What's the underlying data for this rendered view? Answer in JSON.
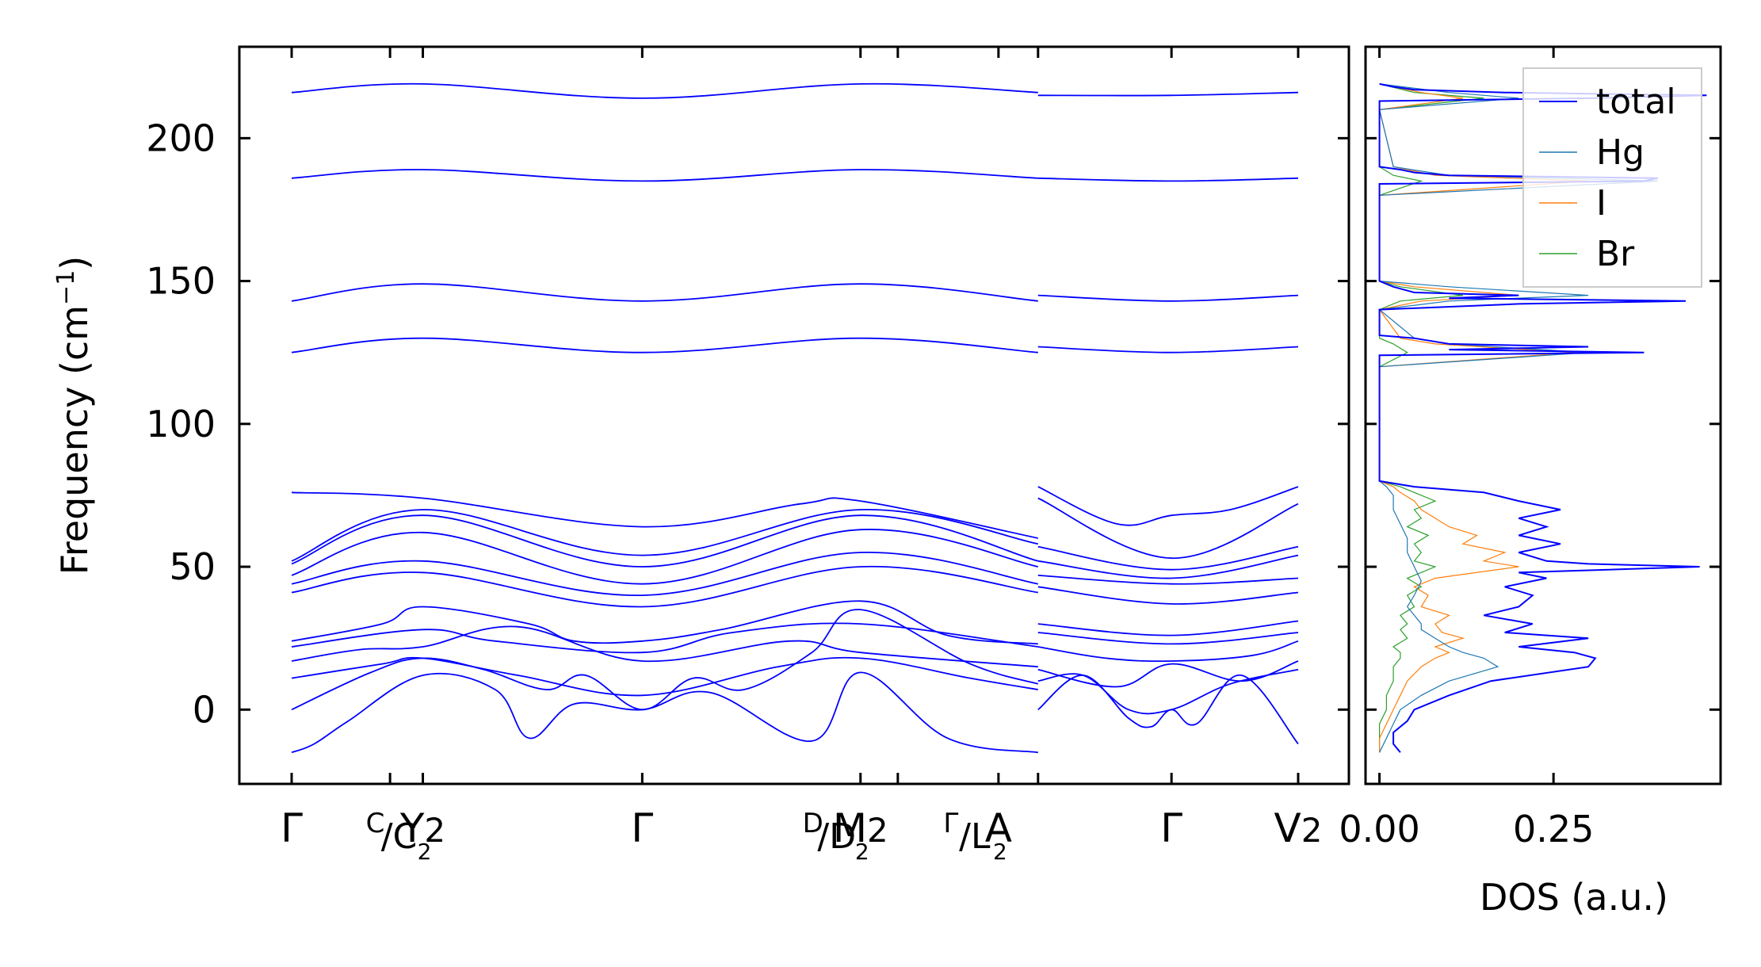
{
  "chart_data": [
    {
      "type": "line",
      "panel": "band-structure",
      "ylabel": "Frequency (cm",
      "ylabel_sup": "−1",
      "ylabel_end": ")",
      "ylim": [
        -26,
        232
      ],
      "yticks": [
        0,
        50,
        100,
        150,
        200
      ],
      "xticks": [
        {
          "main": "Γ",
          "x": 0
        },
        {
          "main": "Y",
          "sub": "2",
          "x": 1.16,
          "pre": "C",
          "pre_slash": "C",
          "pre_sub": "2"
        },
        {
          "main": "Γ",
          "x": 3.1
        },
        {
          "main": "M",
          "sub": "2",
          "x": 5.03,
          "pre": "D",
          "pre_slash": "D",
          "pre_sub": "2"
        },
        {
          "main": "A",
          "x": 6.25,
          "pre": "Γ",
          "pre_slash": "L",
          "pre_sub": "2"
        },
        {
          "main": "Γ",
          "x": 7.78
        },
        {
          "main": "V",
          "sub": "2",
          "x": 8.9
        }
      ],
      "minor_ticks_x": [
        0.87,
        5.36,
        6.6
      ],
      "segment_break_x": 6.6,
      "series_color": "#0000ff",
      "series": [
        {
          "x": [
            0,
            1.16,
            3.1,
            5.03,
            6.6
          ],
          "y": [
            216,
            219,
            214,
            219,
            216
          ]
        },
        {
          "x": [
            6.6,
            7.78,
            8.9
          ],
          "y": [
            215,
            215,
            216
          ]
        },
        {
          "x": [
            0,
            1.16,
            3.1,
            5.03,
            6.6
          ],
          "y": [
            186,
            189,
            185,
            189,
            186
          ]
        },
        {
          "x": [
            6.6,
            7.78,
            8.9
          ],
          "y": [
            186,
            185,
            186
          ]
        },
        {
          "x": [
            0,
            1.16,
            3.1,
            5.03,
            6.6
          ],
          "y": [
            143,
            149,
            143,
            149,
            143
          ]
        },
        {
          "x": [
            6.6,
            7.78,
            8.9
          ],
          "y": [
            145,
            143,
            145
          ]
        },
        {
          "x": [
            0,
            1.16,
            3.1,
            5.03,
            6.6
          ],
          "y": [
            125,
            130,
            125,
            130,
            125
          ]
        },
        {
          "x": [
            6.6,
            7.78,
            8.9
          ],
          "y": [
            127,
            125,
            127
          ]
        },
        {
          "x": [
            0,
            1.16,
            3.1,
            4.5,
            5.03,
            6.6
          ],
          "y": [
            76,
            74,
            64,
            72,
            73,
            60
          ]
        },
        {
          "x": [
            6.6,
            7.3,
            7.78,
            8.3,
            8.9
          ],
          "y": [
            78,
            65,
            68,
            70,
            78
          ]
        },
        {
          "x": [
            0,
            1.16,
            3.1,
            5.03,
            6.6
          ],
          "y": [
            52,
            70,
            54,
            70,
            58
          ]
        },
        {
          "x": [
            6.6,
            7.78,
            8.9
          ],
          "y": [
            74,
            53,
            72
          ]
        },
        {
          "x": [
            0,
            1.16,
            3.1,
            5.03,
            6.6
          ],
          "y": [
            51,
            68,
            50,
            68,
            52
          ]
        },
        {
          "x": [
            6.6,
            7.78,
            8.9
          ],
          "y": [
            57,
            49,
            57
          ]
        },
        {
          "x": [
            0,
            1.16,
            3.1,
            5.03,
            6.6
          ],
          "y": [
            47,
            62,
            44,
            63,
            50
          ]
        },
        {
          "x": [
            6.6,
            7.78,
            8.9
          ],
          "y": [
            52,
            46,
            54
          ]
        },
        {
          "x": [
            0,
            1.16,
            3.1,
            5.03,
            6.6
          ],
          "y": [
            44,
            52,
            40,
            55,
            44
          ]
        },
        {
          "x": [
            6.6,
            7.78,
            8.9
          ],
          "y": [
            47,
            44,
            46
          ]
        },
        {
          "x": [
            0,
            1.16,
            3.1,
            5.03,
            6.6
          ],
          "y": [
            41,
            48,
            36,
            50,
            41
          ]
        },
        {
          "x": [
            6.6,
            7.78,
            8.9
          ],
          "y": [
            43,
            37,
            41
          ]
        },
        {
          "x": [
            0,
            0.8,
            1.16,
            2.1,
            2.5,
            3.1,
            3.8,
            5.03,
            5.8,
            6.6
          ],
          "y": [
            24,
            30,
            36,
            30,
            24,
            24,
            28,
            38,
            26,
            23
          ]
        },
        {
          "x": [
            6.6,
            7.78,
            8.9
          ],
          "y": [
            30,
            26,
            31
          ]
        },
        {
          "x": [
            0,
            1.16,
            1.8,
            3.1,
            3.9,
            5.03,
            6.6
          ],
          "y": [
            22,
            28,
            24,
            20,
            27,
            30,
            22
          ]
        },
        {
          "x": [
            6.6,
            7.78,
            8.9
          ],
          "y": [
            27,
            23,
            27
          ]
        },
        {
          "x": [
            0,
            0.6,
            1.16,
            2.0,
            3.1,
            4.4,
            5.03,
            6.6
          ],
          "y": [
            17,
            21,
            22,
            29,
            17,
            24,
            20,
            15
          ]
        },
        {
          "x": [
            6.6,
            7.2,
            7.78,
            8.5,
            8.9
          ],
          "y": [
            22,
            18,
            17,
            19,
            24
          ]
        },
        {
          "x": [
            0,
            0.8,
            1.16,
            2.0,
            3.1,
            4.3,
            5.03,
            6.0,
            6.6
          ],
          "y": [
            11,
            16,
            18,
            12,
            5,
            15,
            18,
            11,
            7
          ]
        },
        {
          "x": [
            6.6,
            7.3,
            7.78,
            8.4,
            8.9
          ],
          "y": [
            14,
            8,
            16,
            10,
            17
          ]
        },
        {
          "x": [
            0,
            0.7,
            1.16,
            1.7,
            2.25,
            2.6,
            3.1,
            3.55,
            4.0,
            4.6,
            5.03,
            6.0,
            6.6
          ],
          "y": [
            0,
            13,
            18,
            14,
            7,
            12,
            0,
            11,
            7,
            20,
            35,
            16,
            9
          ]
        },
        {
          "x": [
            6.6,
            7.0,
            7.4,
            7.78,
            8.3,
            8.9
          ],
          "y": [
            10,
            12,
            0,
            0,
            9,
            14
          ]
        },
        {
          "x": [
            0,
            0.2,
            0.5,
            1.16,
            1.8,
            2.1,
            2.5,
            3.1,
            3.7,
            4.6,
            5.03,
            5.8,
            6.6
          ],
          "y": [
            -15,
            -12,
            -4,
            12,
            7,
            -10,
            2,
            0,
            6,
            -11,
            13,
            -10,
            -15
          ]
        },
        {
          "x": [
            6.6,
            7.0,
            7.4,
            7.6,
            7.78,
            8.0,
            8.4,
            8.9
          ],
          "y": [
            0,
            12,
            -3,
            -6,
            0,
            -5,
            12,
            -12
          ]
        }
      ]
    },
    {
      "type": "line",
      "panel": "dos",
      "xlabel": "DOS (a.u.)",
      "xticks": [
        0.0,
        0.25
      ],
      "xtick_labels": [
        "0.00",
        "0.25"
      ],
      "xlim": [
        -0.02,
        0.49
      ],
      "legend_position": "top-right",
      "series": [
        {
          "name": "total",
          "color": "#0000ff",
          "freq": [
            -15,
            -12,
            -8,
            -4,
            0,
            5,
            10,
            15,
            18,
            20,
            22,
            25,
            27,
            30,
            33,
            36,
            40,
            43,
            46,
            48,
            50,
            51,
            52,
            55,
            58,
            61,
            64,
            67,
            70,
            73,
            76,
            78,
            80,
            120,
            124,
            125,
            126,
            127,
            128,
            130,
            131,
            140,
            142,
            143,
            144,
            145,
            146,
            148,
            150,
            180,
            184,
            185,
            186,
            187,
            188,
            189,
            190,
            210,
            213,
            214,
            215,
            216,
            217,
            218,
            219
          ],
          "dos": [
            0.03,
            0.02,
            0.02,
            0.04,
            0.05,
            0.1,
            0.16,
            0.3,
            0.31,
            0.28,
            0.2,
            0.3,
            0.18,
            0.22,
            0.15,
            0.2,
            0.22,
            0.18,
            0.24,
            0.2,
            0.46,
            0.3,
            0.24,
            0.2,
            0.26,
            0.2,
            0.24,
            0.2,
            0.26,
            0.2,
            0.15,
            0.05,
            0.0,
            0.0,
            0.0,
            0.38,
            0.1,
            0.3,
            0.1,
            0.05,
            0.0,
            0.0,
            0.2,
            0.44,
            0.1,
            0.2,
            0.05,
            0.02,
            0.0,
            0.0,
            0.0,
            0.38,
            0.4,
            0.1,
            0.05,
            0.03,
            0.0,
            0.0,
            0.0,
            0.3,
            0.47,
            0.18,
            0.05,
            0.02,
            0.0
          ]
        },
        {
          "name": "Hg",
          "color": "#1f77b4",
          "freq": [
            -15,
            -10,
            -5,
            0,
            5,
            10,
            15,
            18,
            20,
            22,
            25,
            28,
            30,
            33,
            36,
            40,
            45,
            50,
            55,
            60,
            65,
            70,
            75,
            78,
            80,
            120,
            125,
            128,
            130,
            140,
            143,
            145,
            148,
            150,
            180,
            185,
            187,
            190,
            210,
            214,
            216,
            219
          ],
          "dos": [
            0.0,
            0.01,
            0.02,
            0.03,
            0.06,
            0.1,
            0.17,
            0.15,
            0.12,
            0.1,
            0.08,
            0.06,
            0.06,
            0.05,
            0.04,
            0.05,
            0.06,
            0.05,
            0.04,
            0.04,
            0.03,
            0.02,
            0.02,
            0.01,
            0.0,
            0.0,
            0.3,
            0.1,
            0.05,
            0.0,
            0.1,
            0.3,
            0.1,
            0.0,
            0.0,
            0.4,
            0.1,
            0.02,
            0.0,
            0.2,
            0.1,
            0.0
          ]
        },
        {
          "name": "I",
          "color": "#ff7f0e",
          "freq": [
            -15,
            -10,
            -5,
            0,
            5,
            10,
            15,
            18,
            20,
            22,
            25,
            27,
            30,
            33,
            36,
            40,
            43,
            46,
            50,
            52,
            55,
            58,
            61,
            64,
            67,
            70,
            73,
            76,
            78,
            80,
            120,
            125,
            128,
            130,
            140,
            143,
            145,
            148,
            150,
            180,
            185,
            187,
            190,
            210,
            214,
            216,
            219
          ],
          "dos": [
            0.0,
            0.0,
            0.01,
            0.02,
            0.03,
            0.04,
            0.06,
            0.08,
            0.1,
            0.08,
            0.12,
            0.09,
            0.08,
            0.1,
            0.06,
            0.07,
            0.05,
            0.08,
            0.2,
            0.15,
            0.18,
            0.12,
            0.14,
            0.1,
            0.08,
            0.06,
            0.05,
            0.03,
            0.02,
            0.0,
            0.0,
            0.28,
            0.08,
            0.03,
            0.0,
            0.06,
            0.2,
            0.05,
            0.0,
            0.0,
            0.3,
            0.08,
            0.02,
            0.0,
            0.12,
            0.06,
            0.0
          ]
        },
        {
          "name": "Br",
          "color": "#2ca02c",
          "freq": [
            -15,
            -10,
            -5,
            0,
            5,
            10,
            15,
            18,
            20,
            22,
            25,
            28,
            30,
            33,
            36,
            40,
            43,
            46,
            50,
            52,
            55,
            58,
            61,
            64,
            67,
            70,
            73,
            76,
            78,
            80,
            120,
            125,
            128,
            130,
            140,
            143,
            145,
            148,
            150,
            180,
            185,
            187,
            190,
            210,
            214,
            216,
            219
          ],
          "dos": [
            0.0,
            0.0,
            0.0,
            0.01,
            0.01,
            0.02,
            0.02,
            0.03,
            0.03,
            0.02,
            0.04,
            0.03,
            0.04,
            0.03,
            0.05,
            0.04,
            0.06,
            0.04,
            0.08,
            0.05,
            0.06,
            0.05,
            0.07,
            0.04,
            0.06,
            0.05,
            0.08,
            0.05,
            0.03,
            0.0,
            0.0,
            0.04,
            0.02,
            0.0,
            0.0,
            0.03,
            0.12,
            0.03,
            0.0,
            0.0,
            0.06,
            0.02,
            0.0,
            0.0,
            0.15,
            0.05,
            0.0
          ]
        }
      ]
    }
  ]
}
